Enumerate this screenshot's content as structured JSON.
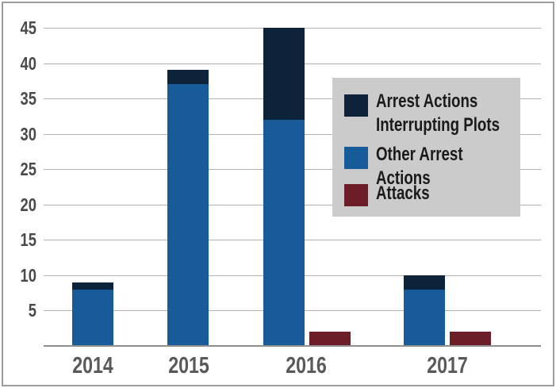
{
  "chart_data": {
    "type": "bar",
    "stacked": true,
    "title": "",
    "xlabel": "",
    "ylabel": "",
    "categories": [
      "2014",
      "2015",
      "2016",
      "2017"
    ],
    "series": [
      {
        "name": "Arrest Actions Interrupting Plots",
        "color": "#0d2339",
        "values": [
          1,
          2,
          13,
          2
        ]
      },
      {
        "name": "Other Arrest Actions",
        "color": "#175b9b",
        "values": [
          8,
          37,
          32,
          8
        ]
      },
      {
        "name": "Attacks",
        "color": "#6d1d27",
        "values": [
          0,
          0,
          2,
          2
        ]
      }
    ],
    "ylim": [
      0,
      45
    ],
    "yticks": [
      5,
      10,
      15,
      20,
      25,
      30,
      35,
      40,
      45
    ],
    "grid": true,
    "legend_position": "upper right"
  },
  "legend": {
    "background": "#cbcbcb",
    "items": [
      {
        "label": "Arrest Actions\nInterrupting Plots",
        "color": "#0d2339"
      },
      {
        "label": "Other Arrest Actions",
        "color": "#175b9b"
      },
      {
        "label": "Attacks",
        "color": "#6d1d27"
      }
    ]
  },
  "style": {
    "gridline_color": "#b0b0b0",
    "axis_line_color": "#8f8f8f",
    "tick_label_color": "#4a4a4a",
    "category_label_color": "#595959",
    "legend_text_color": "#1a1a1a",
    "frame_border_color": "#9c9c9c",
    "background": "#ffffff"
  }
}
